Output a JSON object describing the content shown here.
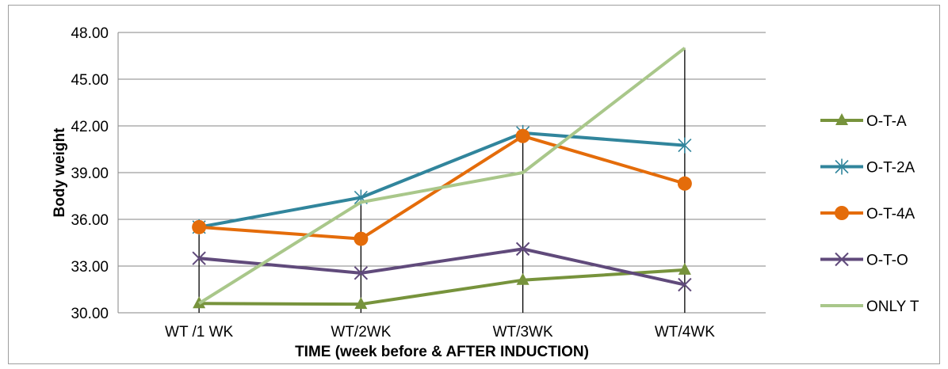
{
  "chart_data": {
    "type": "line",
    "title": "",
    "xlabel": "TIME (week before & AFTER INDUCTION)",
    "ylabel": "Body weight",
    "categories": [
      "WT /1 WK",
      "WT/2WK",
      "WT/3WK",
      "WT/4WK"
    ],
    "ylim": [
      30,
      48
    ],
    "yticks": [
      "30.00",
      "33.00",
      "36.00",
      "39.00",
      "42.00",
      "45.00",
      "48.00"
    ],
    "grid": true,
    "legend": "right",
    "series": [
      {
        "name": "O-T-A",
        "values": [
          30.6,
          30.55,
          32.1,
          32.75
        ],
        "color": "#77933C",
        "marker": "triangle"
      },
      {
        "name": "O-T-2A",
        "values": [
          35.5,
          37.4,
          41.55,
          40.75
        ],
        "color": "#31859C",
        "marker": "asterisk"
      },
      {
        "name": "O-T-4A",
        "values": [
          35.5,
          34.75,
          41.35,
          38.3
        ],
        "color": "#E46C0A",
        "marker": "circle"
      },
      {
        "name": "O-T-O",
        "values": [
          33.5,
          32.55,
          34.1,
          31.8
        ],
        "color": "#604A7B",
        "marker": "x"
      },
      {
        "name": "ONLY T",
        "values": [
          30.6,
          37.1,
          39.0,
          47.0
        ],
        "color": "#A9C78A",
        "marker": "none"
      }
    ],
    "drop_lines": true
  }
}
